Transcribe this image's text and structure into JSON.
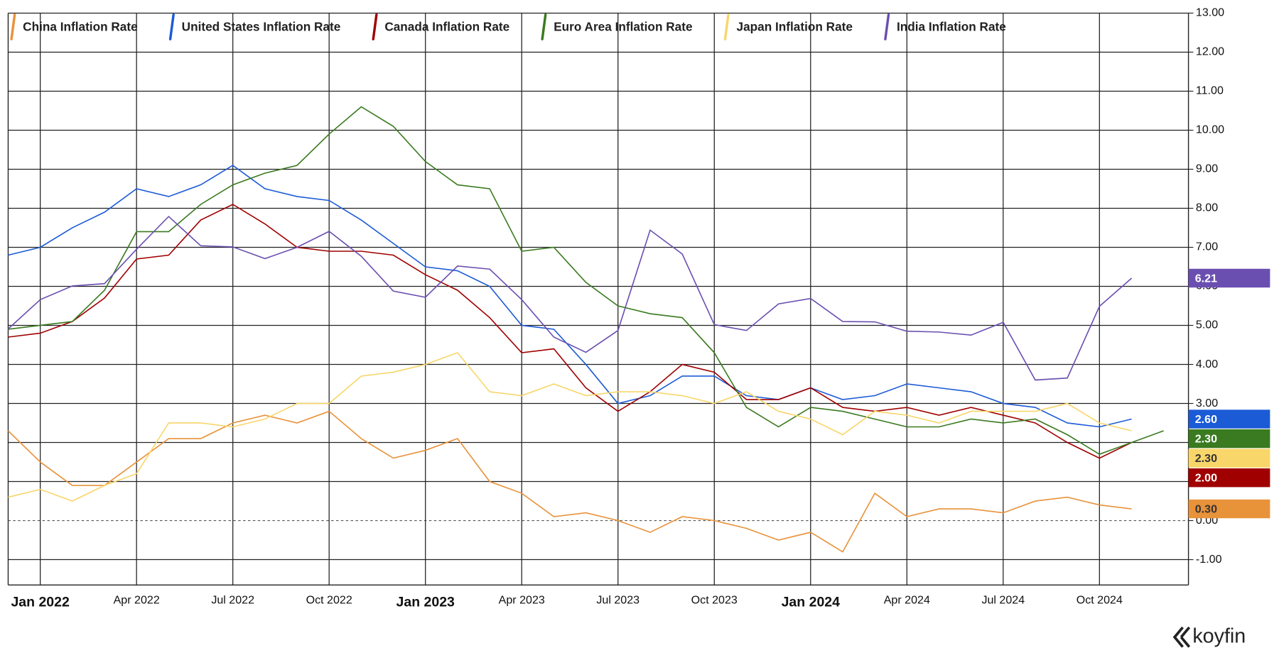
{
  "chart_data": {
    "type": "line",
    "x": [
      "Dec 2021",
      "Jan 2022",
      "Feb 2022",
      "Mar 2022",
      "Apr 2022",
      "May 2022",
      "Jun 2022",
      "Jul 2022",
      "Aug 2022",
      "Sep 2022",
      "Oct 2022",
      "Nov 2022",
      "Dec 2022",
      "Jan 2023",
      "Feb 2023",
      "Mar 2023",
      "Apr 2023",
      "May 2023",
      "Jun 2023",
      "Jul 2023",
      "Aug 2023",
      "Sep 2023",
      "Oct 2023",
      "Nov 2023",
      "Dec 2023",
      "Jan 2024",
      "Feb 2024",
      "Mar 2024",
      "Apr 2024",
      "May 2024",
      "Jun 2024",
      "Jul 2024",
      "Aug 2024",
      "Sep 2024",
      "Oct 2024",
      "Nov 2024",
      "Dec 2024"
    ],
    "xticks": [
      "Jan 2022",
      "Apr 2022",
      "Jul 2022",
      "Oct 2022",
      "Jan 2023",
      "Apr 2023",
      "Jul 2023",
      "Oct 2023",
      "Jan 2024",
      "Apr 2024",
      "Jul 2024",
      "Oct 2024"
    ],
    "ylim": [
      -1.65,
      13
    ],
    "yticks": [
      {
        "value": -1,
        "label": "-1.00"
      },
      {
        "value": 0,
        "label": "0.00"
      },
      {
        "value": 1,
        "label": "1.00"
      },
      {
        "value": 2,
        "label": "2.00"
      },
      {
        "value": 3,
        "label": "3.00"
      },
      {
        "value": 4,
        "label": "4.00"
      },
      {
        "value": 5,
        "label": "5.00"
      },
      {
        "value": 6,
        "label": "6.00"
      },
      {
        "value": 7,
        "label": "7.00"
      },
      {
        "value": 8,
        "label": "8.00"
      },
      {
        "value": 9,
        "label": "9.00"
      },
      {
        "value": 10,
        "label": "10.00"
      },
      {
        "value": 11,
        "label": "11.00"
      },
      {
        "value": 12,
        "label": "12.00"
      },
      {
        "value": 13,
        "label": "13.00"
      }
    ],
    "grid": true,
    "legend": "top",
    "brand": "koyfin",
    "series": [
      {
        "name": "China Inflation Rate",
        "color": "#e8923a",
        "values": [
          2.3,
          1.5,
          0.9,
          0.9,
          1.5,
          2.1,
          2.1,
          2.5,
          2.7,
          2.5,
          2.8,
          2.1,
          1.6,
          1.8,
          2.1,
          1.0,
          0.7,
          0.1,
          0.2,
          0.0,
          -0.3,
          0.1,
          0.0,
          -0.2,
          -0.5,
          -0.3,
          -0.8,
          0.7,
          0.1,
          0.3,
          0.3,
          0.2,
          0.5,
          0.6,
          0.4,
          0.3,
          null
        ],
        "value_labels": [
          null,
          null,
          null,
          null,
          null,
          null,
          null,
          null,
          null,
          null,
          null,
          null,
          null,
          null,
          null,
          null,
          null,
          null,
          null,
          null,
          null,
          null,
          null,
          null,
          null,
          null,
          null,
          null,
          null,
          null,
          null,
          null,
          null,
          null,
          null,
          "0.30",
          null
        ]
      },
      {
        "name": "United States Inflation Rate",
        "color": "#1c5bd6",
        "values": [
          6.8,
          7.0,
          7.5,
          7.9,
          8.5,
          8.3,
          8.6,
          9.1,
          8.5,
          8.3,
          8.2,
          7.7,
          7.1,
          6.5,
          6.4,
          6.0,
          5.0,
          4.9,
          4.0,
          3.0,
          3.2,
          3.7,
          3.7,
          3.2,
          3.1,
          3.4,
          3.1,
          3.2,
          3.5,
          3.4,
          3.3,
          3.0,
          2.9,
          2.5,
          2.4,
          2.6,
          null
        ],
        "value_labels": [
          null,
          null,
          null,
          null,
          null,
          null,
          null,
          null,
          null,
          null,
          null,
          null,
          null,
          null,
          null,
          null,
          null,
          null,
          null,
          null,
          null,
          null,
          null,
          null,
          null,
          null,
          null,
          null,
          null,
          null,
          null,
          null,
          null,
          null,
          null,
          "2.60",
          null
        ]
      },
      {
        "name": "Canada Inflation Rate",
        "color": "#a00000",
        "values": [
          4.7,
          4.8,
          5.1,
          5.7,
          6.7,
          6.8,
          7.7,
          8.1,
          7.6,
          7.0,
          6.9,
          6.9,
          6.8,
          6.3,
          5.9,
          5.2,
          4.3,
          4.4,
          3.4,
          2.8,
          3.3,
          4.0,
          3.8,
          3.1,
          3.1,
          3.4,
          2.9,
          2.8,
          2.9,
          2.7,
          2.9,
          2.7,
          2.5,
          2.0,
          1.6,
          2.0,
          null
        ],
        "value_labels": [
          null,
          null,
          null,
          null,
          null,
          null,
          null,
          null,
          null,
          null,
          null,
          null,
          null,
          null,
          null,
          null,
          null,
          null,
          null,
          null,
          null,
          null,
          null,
          null,
          null,
          null,
          null,
          null,
          null,
          null,
          null,
          null,
          null,
          null,
          null,
          "2.00",
          null
        ]
      },
      {
        "name": "Euro Area Inflation Rate",
        "color": "#3a7a20",
        "values": [
          4.9,
          5.0,
          5.1,
          5.9,
          7.4,
          7.4,
          8.1,
          8.6,
          8.9,
          9.1,
          9.9,
          10.6,
          10.1,
          9.2,
          8.6,
          8.5,
          6.9,
          7.0,
          6.1,
          5.5,
          5.3,
          5.2,
          4.3,
          2.9,
          2.4,
          2.9,
          2.8,
          2.6,
          2.4,
          2.4,
          2.6,
          2.5,
          2.6,
          2.2,
          1.7,
          2.0,
          2.3
        ],
        "value_labels": [
          null,
          null,
          null,
          null,
          null,
          null,
          null,
          null,
          null,
          null,
          null,
          null,
          null,
          null,
          null,
          null,
          null,
          null,
          null,
          null,
          null,
          null,
          null,
          null,
          null,
          null,
          null,
          null,
          null,
          null,
          null,
          null,
          null,
          null,
          null,
          null,
          "2.30"
        ]
      },
      {
        "name": "Japan Inflation Rate",
        "color": "#f8d66a",
        "values": [
          0.6,
          0.8,
          0.5,
          0.9,
          1.2,
          2.5,
          2.5,
          2.4,
          2.6,
          3.0,
          3.0,
          3.7,
          3.8,
          4.0,
          4.3,
          3.3,
          3.2,
          3.5,
          3.2,
          3.3,
          3.3,
          3.2,
          3.0,
          3.3,
          2.8,
          2.6,
          2.2,
          2.8,
          2.7,
          2.5,
          2.8,
          2.8,
          2.8,
          3.0,
          2.5,
          2.3,
          null
        ],
        "value_labels": [
          null,
          null,
          null,
          null,
          null,
          null,
          null,
          null,
          null,
          null,
          null,
          null,
          null,
          null,
          null,
          null,
          null,
          null,
          null,
          null,
          null,
          null,
          null,
          null,
          null,
          null,
          null,
          null,
          null,
          null,
          null,
          null,
          null,
          null,
          null,
          "2.30",
          null
        ]
      },
      {
        "name": "India Inflation Rate",
        "color": "#6b4fb0",
        "values": [
          4.91,
          5.66,
          6.01,
          6.07,
          6.95,
          7.79,
          7.04,
          7.01,
          6.71,
          7.0,
          7.41,
          6.77,
          5.88,
          5.72,
          6.52,
          6.44,
          5.66,
          4.7,
          4.31,
          4.87,
          7.44,
          6.83,
          5.02,
          4.87,
          5.55,
          5.69,
          5.1,
          5.09,
          4.85,
          4.83,
          4.75,
          5.08,
          3.6,
          3.65,
          5.49,
          6.21,
          null
        ],
        "value_labels": [
          null,
          null,
          null,
          null,
          null,
          null,
          null,
          null,
          null,
          null,
          null,
          null,
          null,
          null,
          null,
          null,
          null,
          null,
          null,
          null,
          null,
          null,
          null,
          null,
          null,
          null,
          null,
          null,
          null,
          null,
          null,
          null,
          null,
          null,
          null,
          "6.21",
          null
        ]
      }
    ]
  }
}
